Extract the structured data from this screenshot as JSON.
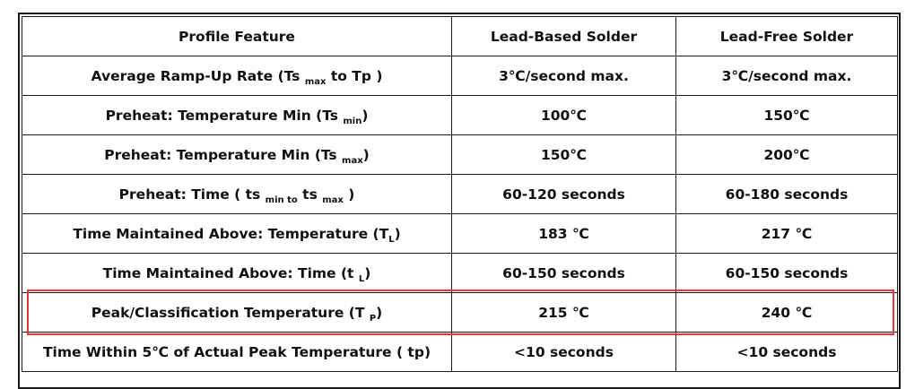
{
  "table": {
    "headers": {
      "feature": "Profile Feature",
      "lead_based": "Lead-Based Solder",
      "lead_free": "Lead-Free Solder"
    },
    "rows": [
      {
        "feature": {
          "pre": "Average Ramp-Up Rate (Ts ",
          "sub": "max",
          "post": " to Tp )"
        },
        "lead_based": "3℃/second max.",
        "lead_free": "3℃/second max."
      },
      {
        "feature": {
          "pre": "Preheat: Temperature Min (Ts ",
          "sub": "min",
          "post": ")"
        },
        "lead_based": "100℃",
        "lead_free": "150℃"
      },
      {
        "feature": {
          "pre": "Preheat: Temperature Min (Ts ",
          "sub": "max",
          "post": ")"
        },
        "lead_based": "150℃",
        "lead_free": "200℃"
      },
      {
        "feature": {
          "pre": "Preheat: Time ( ts ",
          "sub": "min to",
          "mid": " ts ",
          "sub2": "max",
          "post": " )"
        },
        "lead_based": "60-120 seconds",
        "lead_free": "60-180 seconds"
      },
      {
        "feature": {
          "pre": "Time Maintained Above: Temperature (T",
          "sub": "L",
          "post": ")"
        },
        "lead_based": "183 ℃",
        "lead_free": "217 ℃"
      },
      {
        "feature": {
          "pre": "Time Maintained Above: Time (t ",
          "sub": "L",
          "post": ")"
        },
        "lead_based": "60-150 seconds",
        "lead_free": "60-150 seconds"
      },
      {
        "feature": {
          "pre": "Peak/Classification Temperature (T ",
          "sub": "P",
          "post": ")"
        },
        "lead_based": "215 ℃",
        "lead_free": "240 ℃"
      },
      {
        "feature": {
          "pre": "Time Within 5℃ of Actual Peak Temperature ( tp)"
        },
        "lead_based": "<10 seconds",
        "lead_free": "<10 seconds"
      }
    ]
  },
  "highlight": {
    "row_index": 6,
    "color": "#e4393c"
  }
}
